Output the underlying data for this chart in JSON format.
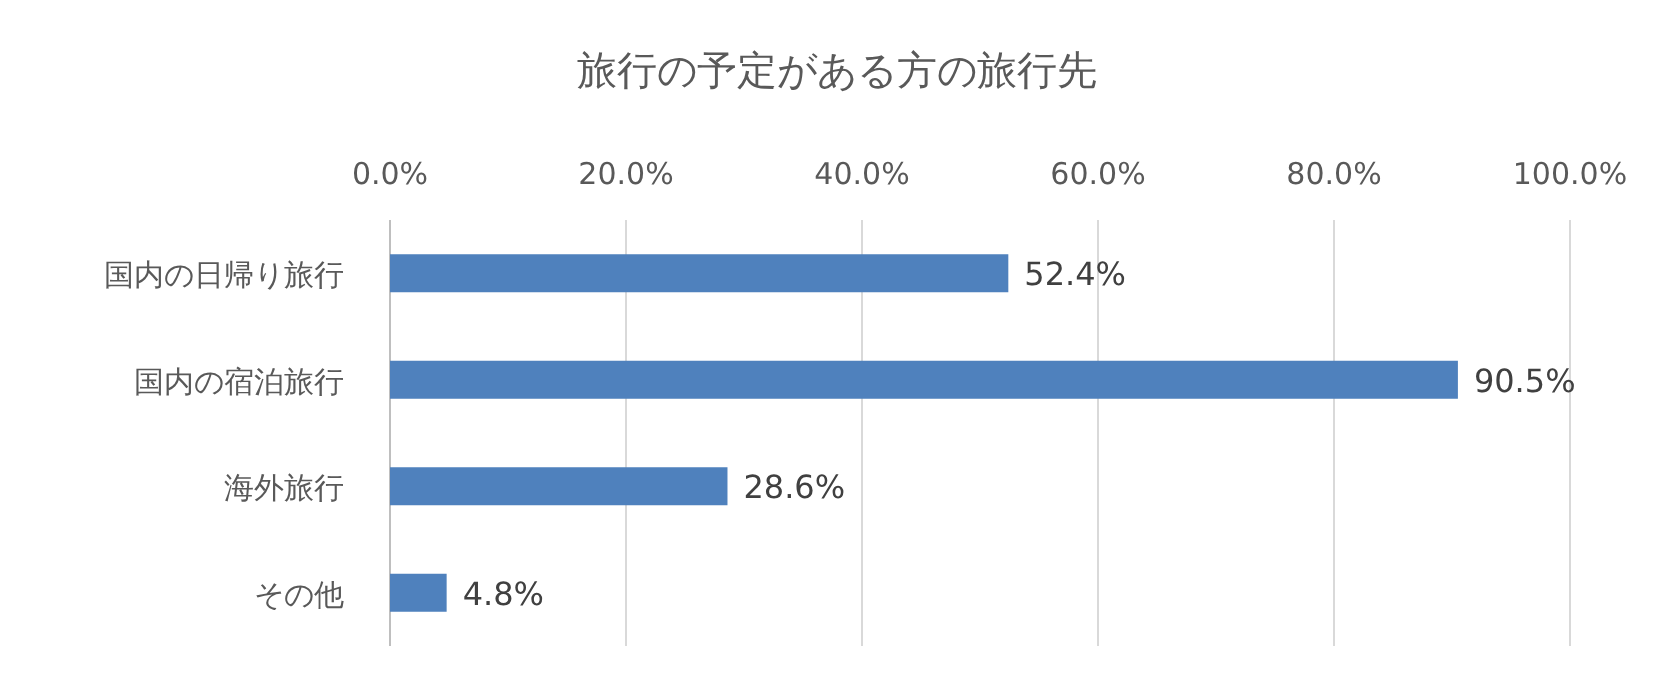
{
  "chart_data": {
    "type": "bar",
    "orientation": "horizontal",
    "title": "旅行の予定がある方の旅行先",
    "categories": [
      "国内の日帰り旅行",
      "国内の宿泊旅行",
      "海外旅行",
      "その他"
    ],
    "values": [
      52.4,
      90.5,
      28.6,
      4.8
    ],
    "value_labels": [
      "52.4%",
      "90.5%",
      "28.6%",
      "4.8%"
    ],
    "color": "#4f81bd",
    "xlim": [
      0,
      100
    ],
    "xticks": [
      {
        "value": 0,
        "label": "0.0%"
      },
      {
        "value": 20,
        "label": "20.0%"
      },
      {
        "value": 40,
        "label": "40.0%"
      },
      {
        "value": 60,
        "label": "60.0%"
      },
      {
        "value": 80,
        "label": "80.0%"
      },
      {
        "value": 100,
        "label": "100.0%"
      }
    ],
    "grid": "x"
  }
}
